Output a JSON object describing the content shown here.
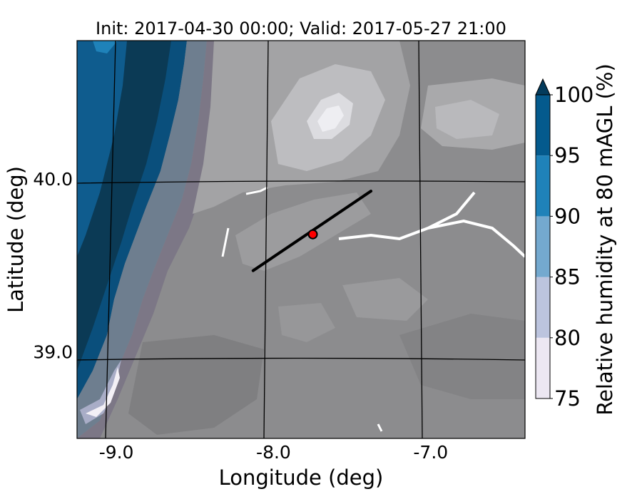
{
  "title": "Init: 2017-04-30 00:00; Valid: 2017-05-27 21:00",
  "map": {
    "xlabel": "Longitude (deg)",
    "ylabel": "Latitude (deg)",
    "x_ticks": [
      {
        "value": -9.0,
        "label": "-9.0"
      },
      {
        "value": -8.0,
        "label": "-8.0"
      },
      {
        "value": -7.0,
        "label": "-7.0"
      }
    ],
    "y_ticks": [
      {
        "value": 40.0,
        "label": "40.0"
      },
      {
        "value": 39.0,
        "label": "39.0"
      }
    ],
    "extent": {
      "lon": [
        -9.25,
        -6.4
      ],
      "lat": [
        38.5,
        40.8
      ]
    },
    "cross_section": {
      "start": [
        -8.13,
        39.47
      ],
      "end": [
        -7.38,
        39.93
      ]
    },
    "marker": {
      "lon": -7.75,
      "lat": 39.68,
      "color": "#ff0000"
    }
  },
  "colorbar": {
    "label": "Relative humidity at 80 mAGL (%)",
    "levels": [
      {
        "from": 75,
        "to": 80,
        "color": "#ece7f2"
      },
      {
        "from": 80,
        "to": 85,
        "color": "#bcc4de"
      },
      {
        "from": 85,
        "to": 90,
        "color": "#74a9cf"
      },
      {
        "from": 90,
        "to": 95,
        "color": "#1f82b9"
      },
      {
        "from": 95,
        "to": 100,
        "color": "#045a8d"
      }
    ],
    "extend_color": "#033b5c",
    "tick_labels": [
      "75",
      "80",
      "85",
      "90",
      "95",
      "100"
    ]
  }
}
